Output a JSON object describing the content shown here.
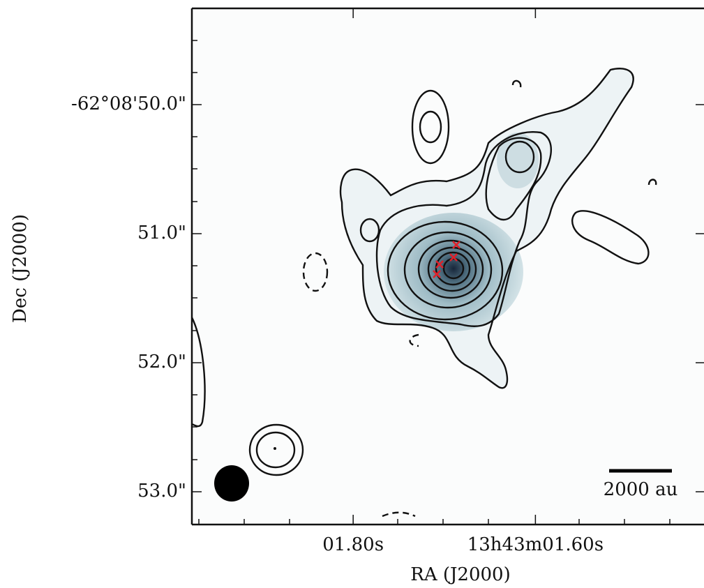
{
  "chart_data": {
    "type": "image",
    "xlabel": "RA (J2000)",
    "ylabel": "Dec (J2000)",
    "xlim": [
      1.977,
      1.415
    ],
    "xticks": [
      {
        "value": 1.8,
        "label": "01.80s"
      },
      {
        "value": 1.6,
        "label": "13h43m01.60s"
      }
    ],
    "ylim": [
      53.254,
      49.254
    ],
    "yticks": [
      {
        "value": 50,
        "label": "-62°08'50.0\""
      },
      {
        "value": 51,
        "label": "51.0\""
      },
      {
        "value": 52,
        "label": "52.0\""
      },
      {
        "value": 53,
        "label": "53.0\""
      }
    ],
    "scalebar_label": "2000 au"
  }
}
